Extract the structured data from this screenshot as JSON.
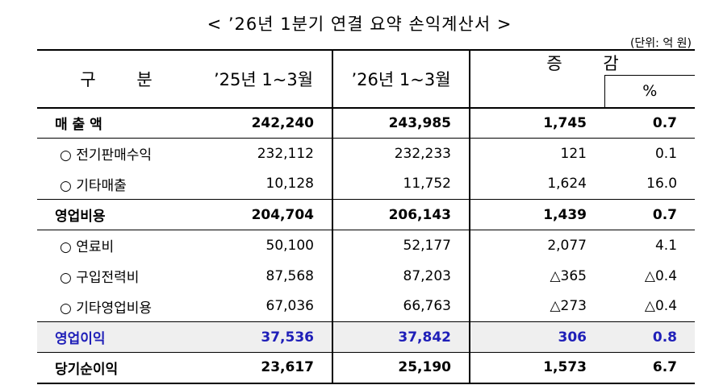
{
  "title": "< ’26년 1분기 연결 요약 손익계산서 >",
  "unit": "(단위: 억 원)",
  "headers": {
    "category": "구 분",
    "prev": "’25년 1~3월",
    "curr": "’26년 1~3월",
    "change": "증 감",
    "pct": "%"
  },
  "rows": [
    {
      "label": "매 출 액",
      "prev": "242,240",
      "curr": "243,985",
      "change": "1,745",
      "pct": "0.7"
    },
    {
      "label": "○ 전기판매수익",
      "prev": "232,112",
      "curr": "232,233",
      "change": "121",
      "pct": "0.1"
    },
    {
      "label": "○ 기타매출",
      "prev": "10,128",
      "curr": "11,752",
      "change": "1,624",
      "pct": "16.0"
    },
    {
      "label": "영업비용",
      "prev": "204,704",
      "curr": "206,143",
      "change": "1,439",
      "pct": "0.7"
    },
    {
      "label": "○ 연료비",
      "prev": "50,100",
      "curr": "52,177",
      "change": "2,077",
      "pct": "4.1"
    },
    {
      "label": "○ 구입전력비",
      "prev": "87,568",
      "curr": "87,203",
      "change": "△365",
      "pct": "△0.4"
    },
    {
      "label": "○ 기타영업비용",
      "prev": "67,036",
      "curr": "66,763",
      "change": "△273",
      "pct": "△0.4"
    },
    {
      "label": "영업이익",
      "prev": "37,536",
      "curr": "37,842",
      "change": "306",
      "pct": "0.8"
    },
    {
      "label": "당기순이익",
      "prev": "23,617",
      "curr": "25,190",
      "change": "1,573",
      "pct": "6.7"
    }
  ],
  "colors": {
    "highlight_text": "#1f1fb8",
    "highlight_bg": "#efefef"
  }
}
